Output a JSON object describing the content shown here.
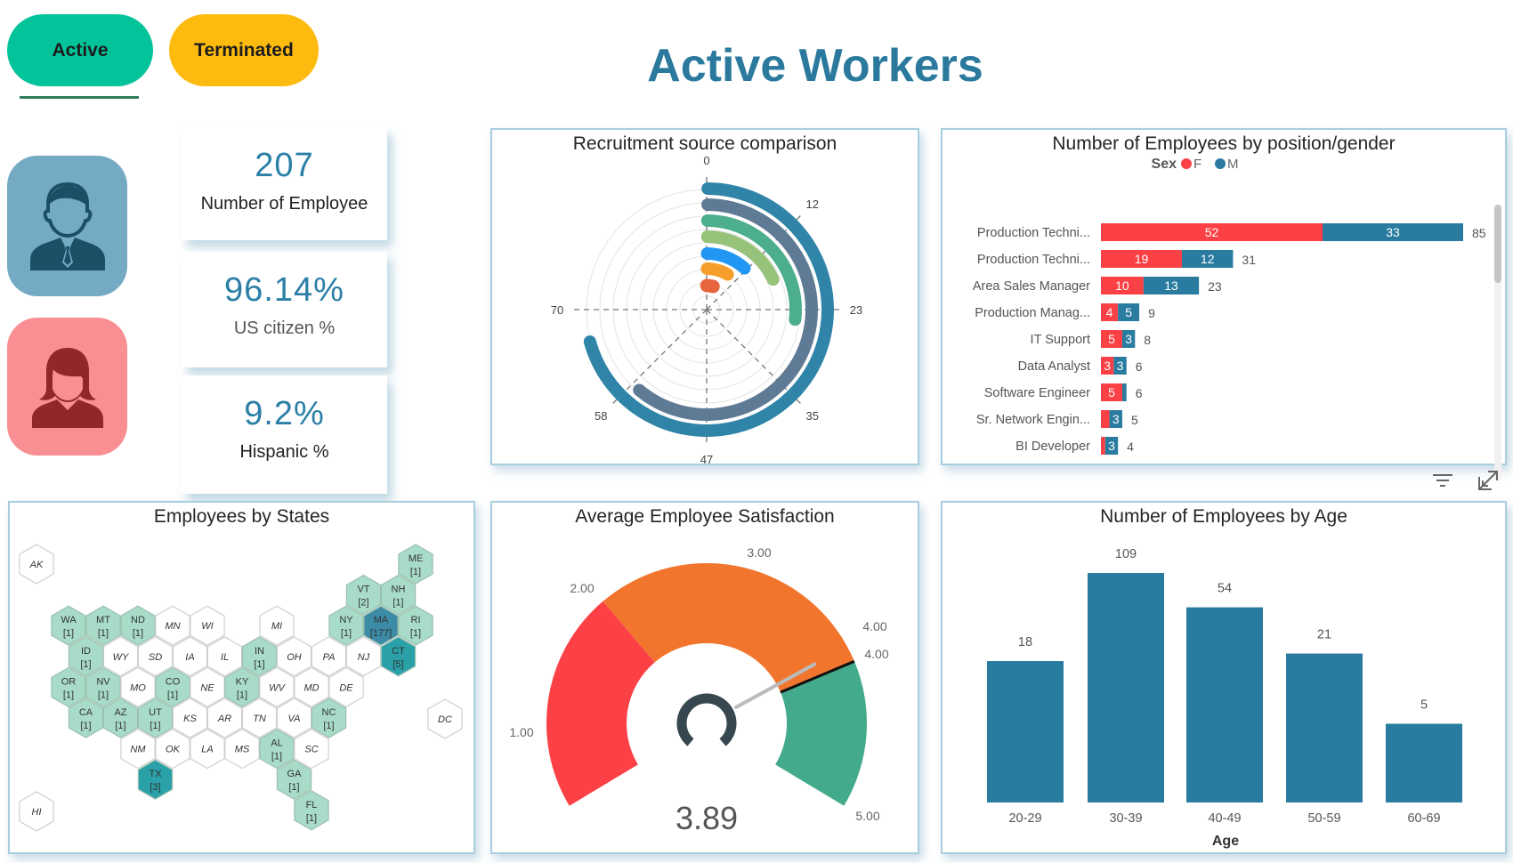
{
  "header": {
    "title": "Active Workers",
    "tabs": [
      {
        "label": "Active",
        "color": "#03C39A"
      },
      {
        "label": "Terminated",
        "color": "#FEBB0F"
      }
    ]
  },
  "avatars": [
    {
      "icon": "male-employee-icon",
      "color": "#74AAC4"
    },
    {
      "icon": "female-employee-icon",
      "color": "#F98F92"
    }
  ],
  "kpis": [
    {
      "value": "207",
      "label": "Number of Employee"
    },
    {
      "value": "96.14%",
      "label": "US citizen %"
    },
    {
      "value": "9.2%",
      "label": "Hispanic %"
    }
  ],
  "panels": {
    "recruitment": "Recruitment source comparison",
    "position": "Number of Employees by position/gender",
    "states": "Employees by States",
    "satisfaction": "Average Employee Satisfaction",
    "age": "Number of Employees by Age"
  },
  "chart_data": [
    {
      "type": "radial-bar",
      "title": "Recruitment source comparison",
      "axis_ticks": [
        "0",
        "12",
        "23",
        "35",
        "47",
        "58",
        "70"
      ],
      "axis_max": 93.3,
      "values": [
        66,
        57,
        25,
        17,
        11,
        8,
        4
      ],
      "colors": [
        "#2F84A8",
        "#5F7A95",
        "#4DAE8E",
        "#96C27A",
        "#2196F3",
        "#F59E2C",
        "#E8643C"
      ]
    },
    {
      "type": "bar",
      "orientation": "horizontal-stacked",
      "title": "Number of Employees by position/gender",
      "legend": {
        "title": "Sex",
        "items": [
          "F",
          "M"
        ],
        "colors": [
          "#FB4146",
          "#2A7BA0"
        ],
        "placement": "top-center"
      },
      "categories": [
        "Production Techni...",
        "Production Techni...",
        "Area Sales Manager",
        "Production Manag...",
        "IT Support",
        "Data Analyst",
        "Software Engineer",
        "Sr. Network Engin...",
        "BI Developer"
      ],
      "series": [
        {
          "name": "F",
          "values": [
            52,
            19,
            10,
            4,
            5,
            3,
            5,
            2,
            1
          ]
        },
        {
          "name": "M",
          "values": [
            33,
            12,
            13,
            5,
            3,
            3,
            1,
            3,
            3
          ]
        }
      ],
      "totals": [
        85,
        31,
        23,
        9,
        8,
        6,
        6,
        5,
        4
      ],
      "xlim": [
        0,
        85
      ]
    },
    {
      "type": "gauge",
      "title": "Average Employee Satisfaction",
      "value": 3.89,
      "value_label": "3.89",
      "target": 4.0,
      "range": [
        0.5,
        5
      ],
      "bands": [
        {
          "from": 0.5,
          "to": 2,
          "color": "#FB4146"
        },
        {
          "from": 2,
          "to": 4,
          "color": "#F2752E"
        },
        {
          "from": 4,
          "to": 5,
          "color": "#43AB8B"
        }
      ],
      "labels": [
        "1.00",
        "2.00",
        "3.00",
        "4.00",
        "4.00",
        "5.00"
      ]
    },
    {
      "type": "bar",
      "title": "Number of Employees by Age",
      "categories": [
        "20-29",
        "30-39",
        "40-49",
        "50-59",
        "60-69"
      ],
      "values": [
        18,
        109,
        54,
        21,
        5
      ],
      "xlabel": "Age",
      "ylabel": "",
      "yscale": "log",
      "color": "#2A7BA0"
    }
  ],
  "states_map": {
    "colors": {
      "none": "#FFFFFF",
      "low": "#A8DCC8",
      "mid": "#2AA0A8",
      "high": "#3C8CA8"
    },
    "states": [
      {
        "code": "AK"
      },
      {
        "code": "HI"
      },
      {
        "code": "DC"
      },
      {
        "code": "ME",
        "count": 1
      },
      {
        "code": "VT",
        "count": 2
      },
      {
        "code": "NH",
        "count": 1
      },
      {
        "code": "WA",
        "count": 1
      },
      {
        "code": "MT",
        "count": 1
      },
      {
        "code": "ND",
        "count": 1
      },
      {
        "code": "MN"
      },
      {
        "code": "WI"
      },
      {
        "code": "MI"
      },
      {
        "code": "NY",
        "count": 1
      },
      {
        "code": "MA",
        "count": 177
      },
      {
        "code": "RI",
        "count": 1
      },
      {
        "code": "ID",
        "count": 1
      },
      {
        "code": "WY"
      },
      {
        "code": "SD"
      },
      {
        "code": "IA"
      },
      {
        "code": "IL"
      },
      {
        "code": "IN",
        "count": 1
      },
      {
        "code": "OH"
      },
      {
        "code": "PA"
      },
      {
        "code": "NJ"
      },
      {
        "code": "CT",
        "count": 5
      },
      {
        "code": "OR",
        "count": 1
      },
      {
        "code": "NV",
        "count": 1
      },
      {
        "code": "MO"
      },
      {
        "code": "CO",
        "count": 1
      },
      {
        "code": "NE"
      },
      {
        "code": "KY",
        "count": 1
      },
      {
        "code": "WV"
      },
      {
        "code": "MD"
      },
      {
        "code": "DE"
      },
      {
        "code": "CA",
        "count": 1
      },
      {
        "code": "AZ",
        "count": 1
      },
      {
        "code": "UT",
        "count": 1
      },
      {
        "code": "KS"
      },
      {
        "code": "AR"
      },
      {
        "code": "TN"
      },
      {
        "code": "VA"
      },
      {
        "code": "NC",
        "count": 1
      },
      {
        "code": "NM"
      },
      {
        "code": "OK"
      },
      {
        "code": "LA"
      },
      {
        "code": "MS"
      },
      {
        "code": "AL",
        "count": 1
      },
      {
        "code": "SC"
      },
      {
        "code": "TX",
        "count": 3
      },
      {
        "code": "GA",
        "count": 1
      },
      {
        "code": "FL",
        "count": 1
      }
    ]
  },
  "visual_controls": [
    {
      "icon": "filter-icon"
    },
    {
      "icon": "focus-mode-icon"
    }
  ]
}
